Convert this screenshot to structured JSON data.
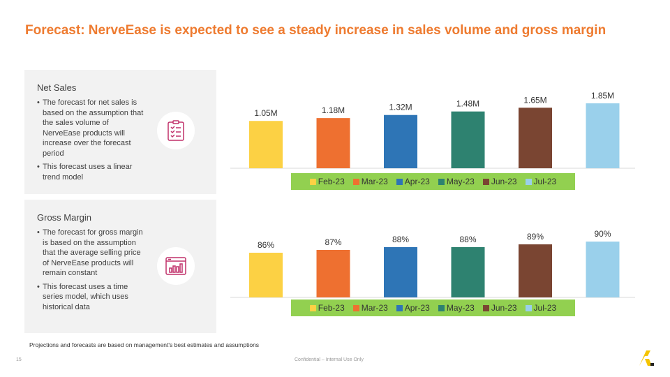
{
  "title": "Forecast: NerveEase is expected to see a steady increase in sales volume and gross margin",
  "panels": [
    {
      "heading": "Net Sales",
      "icon": "checklist-icon",
      "bullets": [
        "The forecast for net sales is based on the assumption that the sales volume of NerveEase products will increase over the forecast period",
        "This forecast uses a linear trend model"
      ]
    },
    {
      "heading": "Gross Margin",
      "icon": "bar-chart-window-icon",
      "bullets": [
        "The forecast for gross margin is based on the assumption that the average selling price of NerveEase products will remain constant",
        "This forecast uses a time series model, which uses historical data"
      ]
    }
  ],
  "colors": {
    "accent": "#ee7b30",
    "icon": "#c0306a",
    "legend_bg": "#92d050",
    "series": [
      "#fcd144",
      "#ee7030",
      "#2e75b6",
      "#2e8270",
      "#7a4532",
      "#9ad0eb"
    ]
  },
  "chart_data": [
    {
      "type": "bar",
      "series": [
        {
          "name": "Feb-23",
          "value": 1.05,
          "label": "1.05M"
        },
        {
          "name": "Mar-23",
          "value": 1.18,
          "label": "1.18M"
        },
        {
          "name": "Apr-23",
          "value": 1.32,
          "label": "1.32M"
        },
        {
          "name": "May-23",
          "value": 1.48,
          "label": "1.48M"
        },
        {
          "name": "Jun-23",
          "value": 1.65,
          "label": "1.65M"
        },
        {
          "name": "Jul-23",
          "value": 1.85,
          "label": "1.85M"
        }
      ],
      "ylim": [
        0,
        1.85
      ],
      "legend": "bottom",
      "grid": false
    },
    {
      "type": "bar",
      "series": [
        {
          "name": "Feb-23",
          "value": 86,
          "label": "86%"
        },
        {
          "name": "Mar-23",
          "value": 87,
          "label": "87%"
        },
        {
          "name": "Apr-23",
          "value": 88,
          "label": "88%"
        },
        {
          "name": "May-23",
          "value": 88,
          "label": "88%"
        },
        {
          "name": "Jun-23",
          "value": 89,
          "label": "89%"
        },
        {
          "name": "Jul-23",
          "value": 90,
          "label": "90%"
        }
      ],
      "ylim": [
        0,
        90
      ],
      "legend": "bottom",
      "grid": false
    }
  ],
  "footnote": "Projections and forecasts are based on management's best estimates and assumptions",
  "page_number": "15",
  "confidential": "Confidential – Internal Use Only",
  "logo": "company-logo-icon"
}
